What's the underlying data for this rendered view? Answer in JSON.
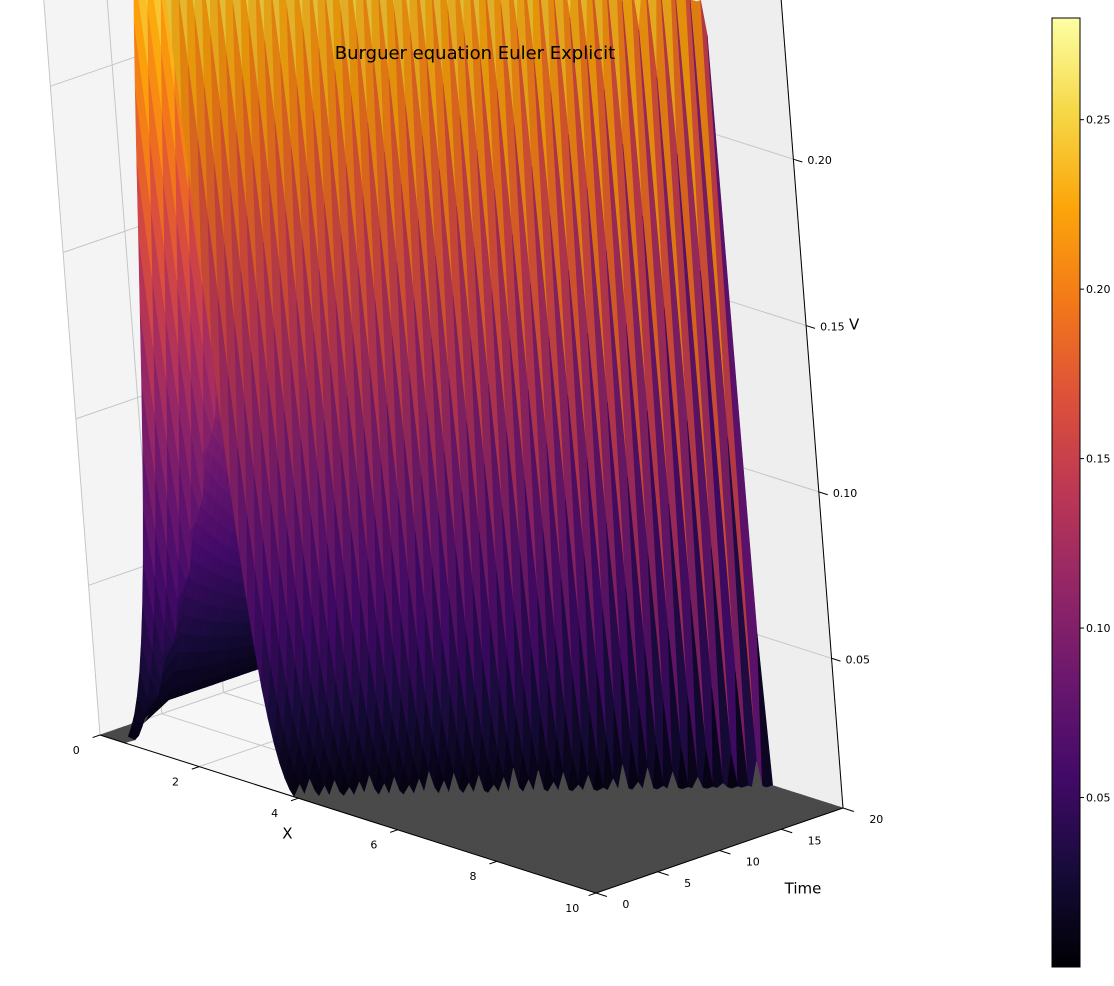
{
  "chart_data": {
    "type": "surface3d",
    "title": "Burguer equation Euler Explicit",
    "xlabel": "X",
    "ylabel": "Time",
    "zlabel": "V",
    "xlim": [
      0,
      10
    ],
    "ylim": [
      0,
      20
    ],
    "zlim": [
      0.005,
      0.28
    ],
    "x_ticks": [
      "0",
      "2",
      "4",
      "6",
      "8",
      "10"
    ],
    "y_ticks": [
      "0",
      "5",
      "10",
      "15",
      "20"
    ],
    "z_ticks": [
      "0.05",
      "0.10",
      "0.15",
      "0.20",
      "0.25"
    ],
    "colormap": "inferno",
    "colorbar": {
      "range": [
        0.0,
        0.28
      ],
      "ticks": [
        "0.05",
        "0.10",
        "0.15",
        "0.20",
        "0.25"
      ]
    },
    "initial_condition": {
      "shape": "gaussian-pulse",
      "center_x": 2.2,
      "peak_v": 0.275
    },
    "time_evolution": {
      "peak_x_at_t20": 8.4,
      "peak_v_at_t20": 0.24,
      "floor_v": 0.005
    },
    "grid": true
  }
}
